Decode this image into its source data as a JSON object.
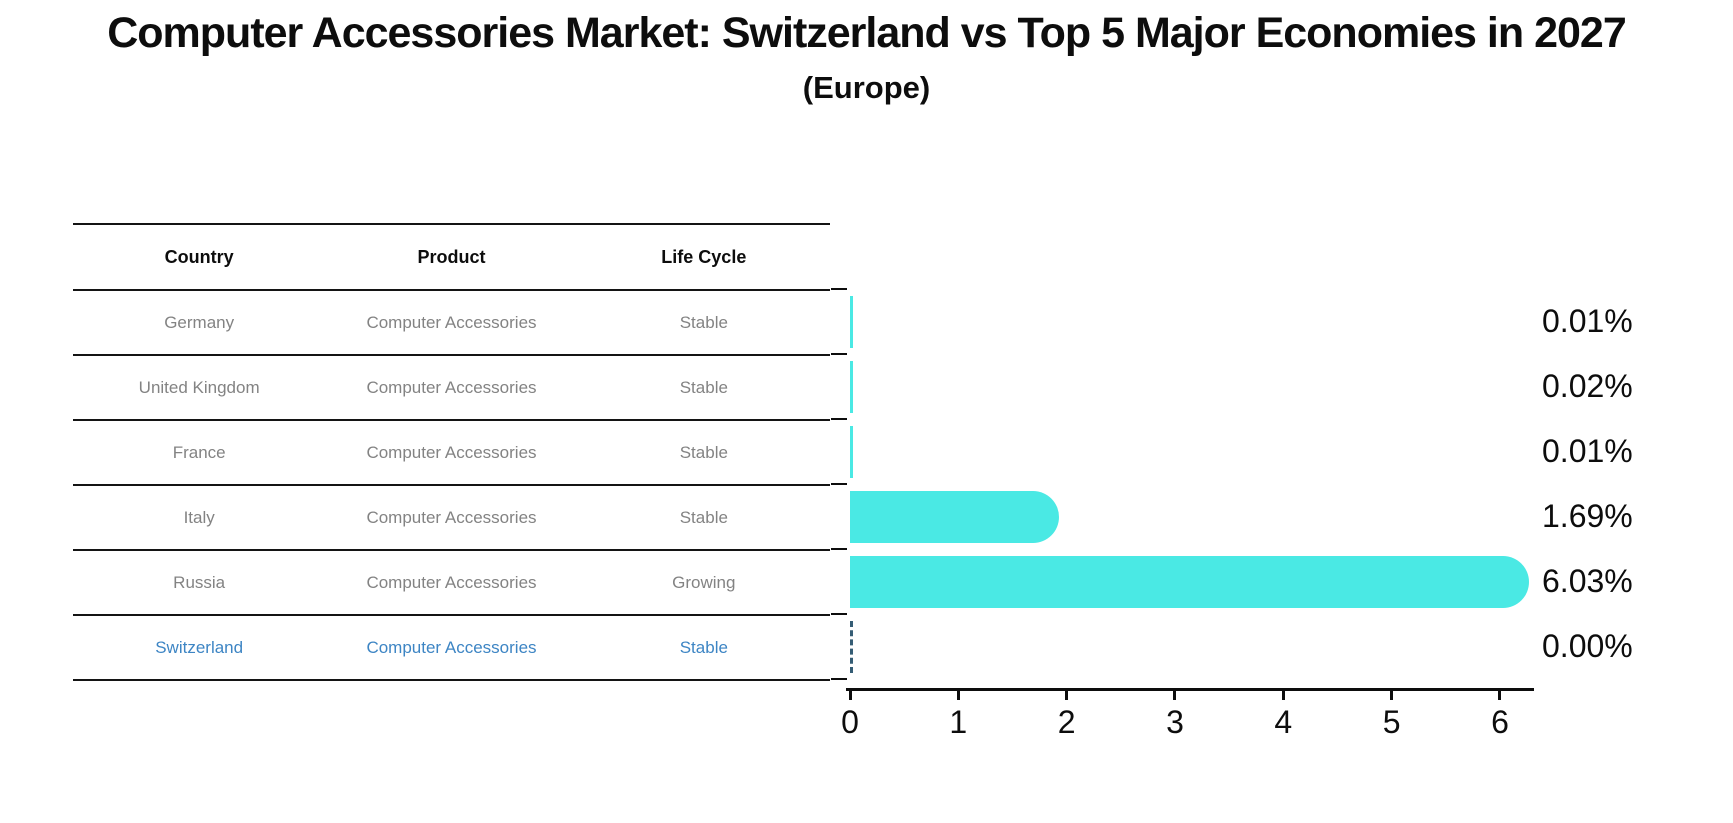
{
  "title": "Computer Accessories Market: Switzerland vs Top 5 Major Economies in 2027",
  "subtitle": "(Europe)",
  "table": {
    "headers": [
      "Country",
      "Product",
      "Life Cycle"
    ],
    "rows": [
      {
        "country": "Germany",
        "product": "Computer Accessories",
        "life_cycle": "Stable",
        "highlighted": false
      },
      {
        "country": "United Kingdom",
        "product": "Computer Accessories",
        "life_cycle": "Stable",
        "highlighted": false
      },
      {
        "country": "France",
        "product": "Computer Accessories",
        "life_cycle": "Stable",
        "highlighted": false
      },
      {
        "country": "Italy",
        "product": "Computer Accessories",
        "life_cycle": "Stable",
        "highlighted": false
      },
      {
        "country": "Russia",
        "product": "Computer Accessories",
        "life_cycle": "Growing",
        "highlighted": false
      },
      {
        "country": "Switzerland",
        "product": "Computer Accessories",
        "life_cycle": "Stable",
        "highlighted": true
      }
    ]
  },
  "chart_data": {
    "type": "bar",
    "orientation": "horizontal",
    "categories": [
      "Germany",
      "United Kingdom",
      "France",
      "Italy",
      "Russia",
      "Switzerland"
    ],
    "values": [
      0.01,
      0.02,
      0.01,
      1.69,
      6.03,
      0.0
    ],
    "value_labels": [
      "0.01%",
      "0.02%",
      "0.01%",
      "1.69%",
      "6.03%",
      "0.00%"
    ],
    "x_ticks": [
      "0",
      "1",
      "2",
      "3",
      "4",
      "5",
      "6"
    ],
    "xlim": [
      0,
      6.35
    ],
    "grid": false,
    "legend": false,
    "bar_color": "#4ae9e4",
    "highlight_index": 5,
    "highlight_style": "dashed-outline",
    "highlight_outline_color": "#355d75",
    "highlight_text_color": "#3d85c4",
    "text_color_muted": "#838383",
    "axis_color": "#0d0d0d"
  }
}
